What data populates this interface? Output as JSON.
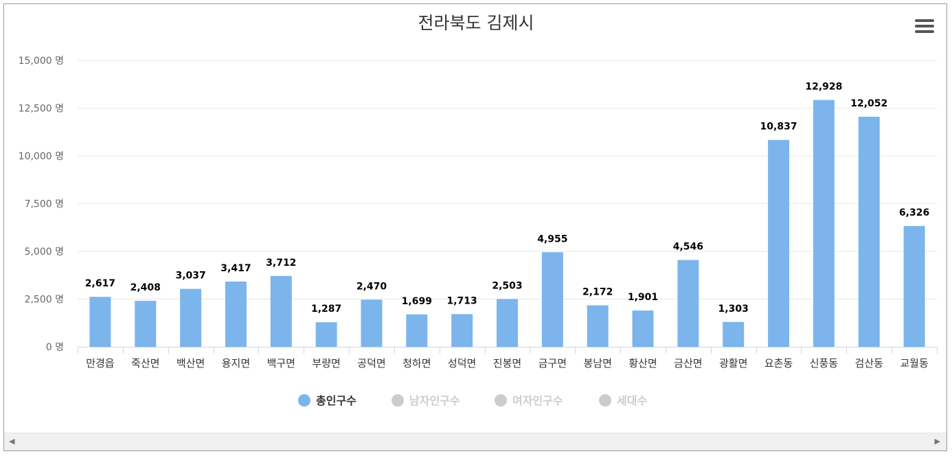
{
  "chart_data": {
    "type": "bar",
    "title": "전라북도 김제시",
    "categories": [
      "만경읍",
      "죽산면",
      "백산면",
      "용지면",
      "백구면",
      "부량면",
      "공덕면",
      "청하면",
      "성덕면",
      "진봉면",
      "금구면",
      "봉남면",
      "황산면",
      "금산면",
      "광활면",
      "요촌동",
      "신풍동",
      "검산동",
      "교월동"
    ],
    "series": [
      {
        "name": "총인구수",
        "values": [
          2617,
          2408,
          3037,
          3417,
          3712,
          1287,
          2470,
          1699,
          1713,
          2503,
          4955,
          2172,
          1901,
          4546,
          1303,
          10837,
          12928,
          12052,
          6326
        ],
        "visible": true,
        "color": "#7cb5ec"
      },
      {
        "name": "남자인구수",
        "visible": false,
        "color": "#cccccc"
      },
      {
        "name": "여자인구수",
        "visible": false,
        "color": "#cccccc"
      },
      {
        "name": "세대수",
        "visible": false,
        "color": "#cccccc"
      }
    ],
    "yticks": [
      "0 명",
      "2,500 명",
      "5,000 명",
      "7,500 명",
      "10,000 명",
      "12,500 명",
      "15,000 명"
    ],
    "data_labels": [
      "2,617",
      "2,408",
      "3,037",
      "3,417",
      "3,712",
      "1,287",
      "2,470",
      "1,699",
      "1,713",
      "2,503",
      "4,955",
      "2,172",
      "1,901",
      "4,546",
      "1,303",
      "10,837",
      "12,928",
      "12,052",
      "6,326"
    ],
    "ylim": [
      0,
      15000
    ],
    "ytick_step": 2500,
    "grid": true,
    "legend_position": "bottom-center"
  },
  "colors": {
    "bar": "#7cb5ec",
    "grid": "#e6e6e6",
    "axis": "#ccd6eb",
    "legend_hidden": "#cccccc"
  },
  "icons": {
    "menu": "hamburger-icon",
    "scroll_left": "chevron-left-icon",
    "scroll_right": "chevron-right-icon"
  }
}
